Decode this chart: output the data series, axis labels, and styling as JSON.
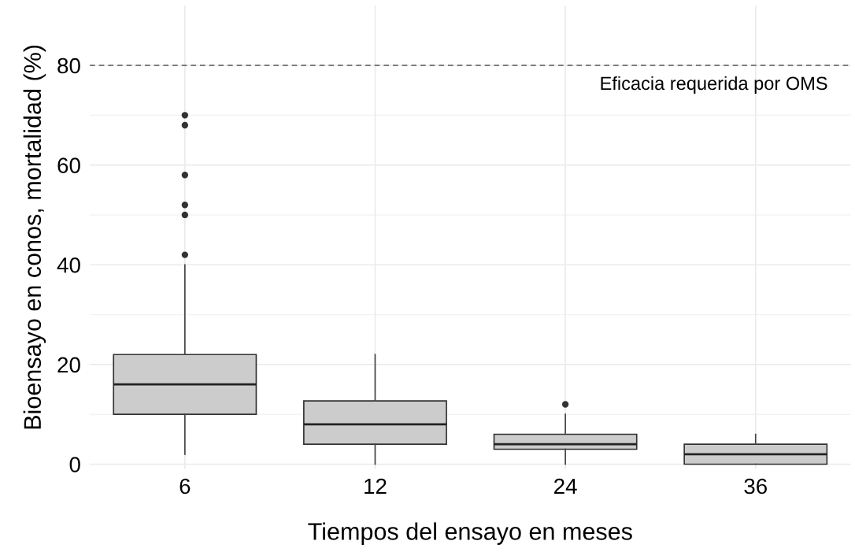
{
  "chart_data": {
    "type": "box",
    "xlabel": "Tiempos del ensayo en meses",
    "ylabel": "Bioensayo en conos, mortalidad (%)",
    "categories": [
      "6",
      "12",
      "24",
      "36"
    ],
    "boxes": [
      {
        "low": 2,
        "q1": 10,
        "median": 16,
        "q3": 22,
        "high": 40,
        "outliers": [
          42,
          50,
          52,
          58,
          68,
          70
        ]
      },
      {
        "low": 0,
        "q1": 4,
        "median": 8,
        "q3": 12.7,
        "high": 22
      },
      {
        "low": 0,
        "q1": 3,
        "median": 4,
        "q3": 6,
        "high": 10,
        "outliers": [
          12
        ]
      },
      {
        "low": 0,
        "q1": 0,
        "median": 2,
        "q3": 4,
        "high": 6
      }
    ],
    "color": "#cccccc",
    "ylim": [
      -1,
      92
    ],
    "yticks": [
      0,
      20,
      40,
      60,
      80
    ],
    "grid": true,
    "ref_lines": [
      {
        "axis": "y",
        "value": 80,
        "label": "Eficacia requerida por OMS",
        "color": "#555555",
        "line_style": "dashed"
      }
    ]
  }
}
